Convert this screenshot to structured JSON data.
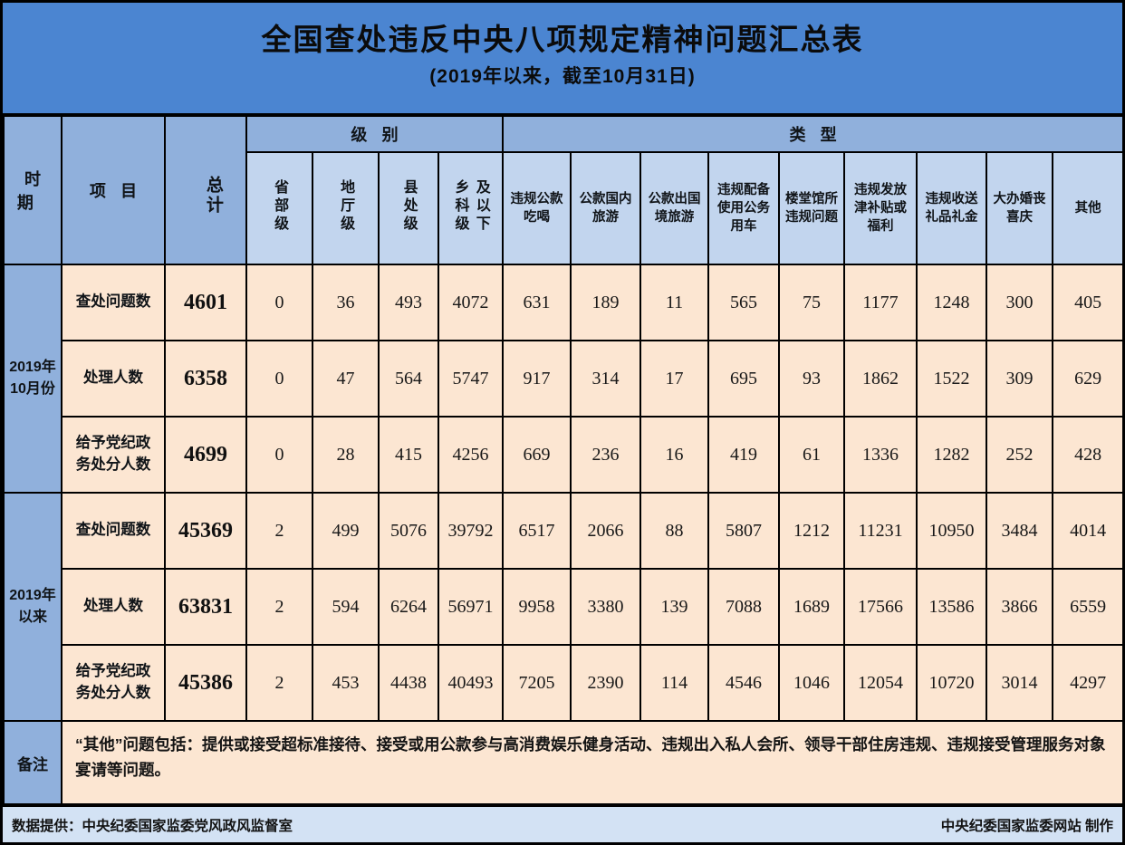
{
  "title": {
    "main": "全国查处违反中央八项规定精神问题汇总表",
    "subtitle": "(2019年以来，截至10月31日)"
  },
  "header": {
    "period": "时期",
    "item": "项目",
    "total": "总计",
    "level_group": "级别",
    "type_group": "类型",
    "level_columns": [
      "省部级",
      "地厅级",
      "县处级",
      "乡科级\n及以下"
    ],
    "type_columns": [
      "违规公款\n吃喝",
      "公款国内\n旅游",
      "公款出国\n境旅游",
      "违规配备\n使用公务\n用车",
      "楼堂馆所\n违规问题",
      "违规发放\n津补贴或\n福利",
      "违规收送\n礼品礼金",
      "大办婚丧\n喜庆",
      "其他"
    ]
  },
  "blocks": [
    {
      "period": "2019年\n10月份",
      "rows": [
        {
          "label": "查处问题数",
          "total": "4601",
          "values": [
            "0",
            "36",
            "493",
            "4072",
            "631",
            "189",
            "11",
            "565",
            "75",
            "1177",
            "1248",
            "300",
            "405"
          ]
        },
        {
          "label": "处理人数",
          "total": "6358",
          "values": [
            "0",
            "47",
            "564",
            "5747",
            "917",
            "314",
            "17",
            "695",
            "93",
            "1862",
            "1522",
            "309",
            "629"
          ]
        },
        {
          "label": "给予党纪政\n务处分人数",
          "total": "4699",
          "values": [
            "0",
            "28",
            "415",
            "4256",
            "669",
            "236",
            "16",
            "419",
            "61",
            "1336",
            "1282",
            "252",
            "428"
          ]
        }
      ]
    },
    {
      "period": "2019年\n以来",
      "rows": [
        {
          "label": "查处问题数",
          "total": "45369",
          "values": [
            "2",
            "499",
            "5076",
            "39792",
            "6517",
            "2066",
            "88",
            "5807",
            "1212",
            "11231",
            "10950",
            "3484",
            "4014"
          ]
        },
        {
          "label": "处理人数",
          "total": "63831",
          "values": [
            "2",
            "594",
            "6264",
            "56971",
            "9958",
            "3380",
            "139",
            "7088",
            "1689",
            "17566",
            "13586",
            "3866",
            "6559"
          ]
        },
        {
          "label": "给予党纪政\n务处分人数",
          "total": "45386",
          "values": [
            "2",
            "453",
            "4438",
            "40493",
            "7205",
            "2390",
            "114",
            "4546",
            "1046",
            "12054",
            "10720",
            "3014",
            "4297"
          ]
        }
      ]
    }
  ],
  "note": {
    "label": "备注",
    "text": "“其他”问题包括：提供或接受超标准接待、接受或用公款参与高消费娱乐健身活动、违规出入私人会所、领导干部住房违规、违规接受管理服务对象宴请等问题。"
  },
  "footer": {
    "left": "数据提供：中央纪委国家监委党风政风监督室",
    "right": "中央纪委国家监委网站  制作"
  },
  "colors": {
    "title_bg": "#4b85d1",
    "header_bg": "#90b0dc",
    "subheader_bg": "#c2d5ee",
    "cell_bg": "#fce6d2",
    "footer_bg": "#d3e2f4",
    "border": "#000000"
  },
  "chart_data": {
    "type": "table",
    "title": "全国查处违反中央八项规定精神问题汇总表",
    "subtitle": "(2019年以来，截至10月31日)",
    "column_groups": {
      "级别": [
        "省部级",
        "地厅级",
        "县处级",
        "乡科级及以下"
      ],
      "类型": [
        "违规公款吃喝",
        "公款国内旅游",
        "公款出国境旅游",
        "违规配备使用公务用车",
        "楼堂馆所违规问题",
        "违规发放津补贴或福利",
        "违规收送礼品礼金",
        "大办婚丧喜庆",
        "其他"
      ]
    },
    "columns": [
      "时期",
      "项目",
      "总计",
      "省部级",
      "地厅级",
      "县处级",
      "乡科级及以下",
      "违规公款吃喝",
      "公款国内旅游",
      "公款出国境旅游",
      "违规配备使用公务用车",
      "楼堂馆所违规问题",
      "违规发放津补贴或福利",
      "违规收送礼品礼金",
      "大办婚丧喜庆",
      "其他"
    ],
    "rows": [
      [
        "2019年10月份",
        "查处问题数",
        4601,
        0,
        36,
        493,
        4072,
        631,
        189,
        11,
        565,
        75,
        1177,
        1248,
        300,
        405
      ],
      [
        "2019年10月份",
        "处理人数",
        6358,
        0,
        47,
        564,
        5747,
        917,
        314,
        17,
        695,
        93,
        1862,
        1522,
        309,
        629
      ],
      [
        "2019年10月份",
        "给予党纪政务处分人数",
        4699,
        0,
        28,
        415,
        4256,
        669,
        236,
        16,
        419,
        61,
        1336,
        1282,
        252,
        428
      ],
      [
        "2019年以来",
        "查处问题数",
        45369,
        2,
        499,
        5076,
        39792,
        6517,
        2066,
        88,
        5807,
        1212,
        11231,
        10950,
        3484,
        4014
      ],
      [
        "2019年以来",
        "处理人数",
        63831,
        2,
        594,
        6264,
        56971,
        9958,
        3380,
        139,
        7088,
        1689,
        17566,
        13586,
        3866,
        6559
      ],
      [
        "2019年以来",
        "给予党纪政务处分人数",
        45386,
        2,
        453,
        4438,
        40493,
        7205,
        2390,
        114,
        4546,
        1046,
        12054,
        10720,
        3014,
        4297
      ]
    ]
  }
}
